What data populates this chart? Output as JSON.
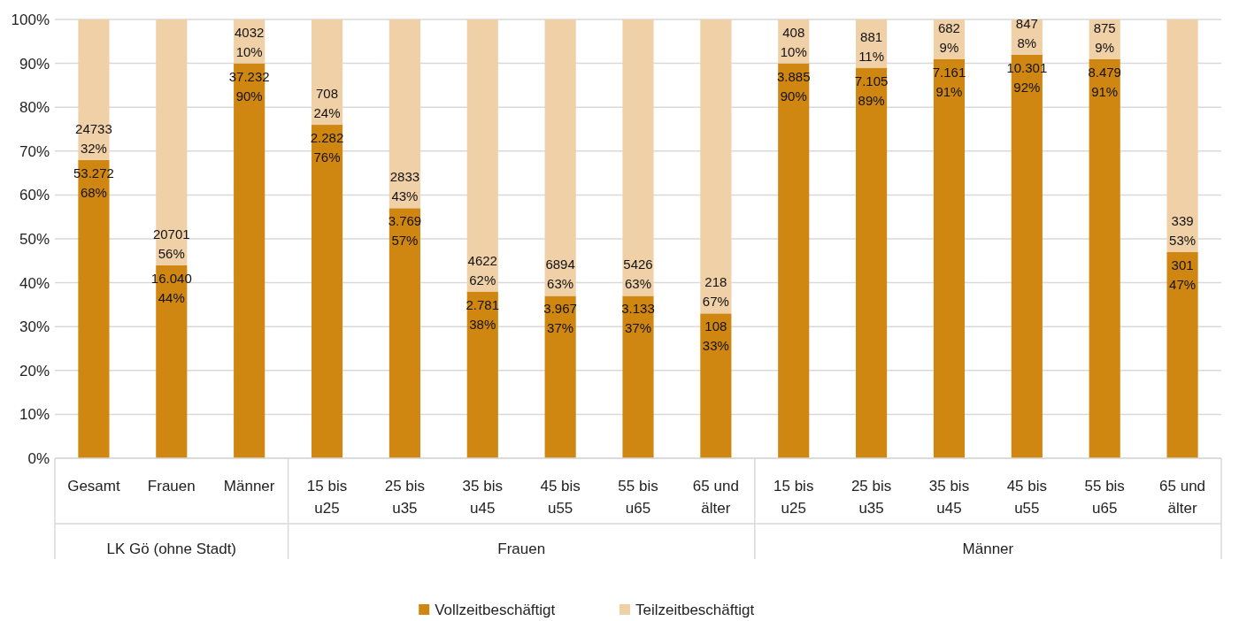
{
  "chart_data": {
    "type": "bar",
    "stacked": true,
    "categories": [
      "Gesamt",
      "Frauen",
      "Männer",
      "15 bis u25",
      "25 bis u35",
      "35 bis u45",
      "45 bis u55",
      "55 bis u65",
      "65 und älter",
      "15 bis u25",
      "25 bis u35",
      "35 bis u45",
      "45 bis u55",
      "55 bis u65",
      "65 und älter"
    ],
    "series": [
      {
        "name": "Vollzeitbeschäftigt",
        "color": "#d08712",
        "values": [
          68,
          44,
          90,
          76,
          57,
          38,
          37,
          37,
          33,
          90,
          89,
          91,
          92,
          91,
          47
        ],
        "value_labels": [
          "53.272\n68%",
          "16.040\n44%",
          "37.232\n90%",
          "2.282\n76%",
          "3.769\n57%",
          "2.781\n38%",
          "3.967\n37%",
          "3.133\n37%",
          "108\n33%",
          "3.885\n90%",
          "7.105\n89%",
          "7.161\n91%",
          "10.301\n92%",
          "8.479\n91%",
          "301\n47%"
        ]
      },
      {
        "name": "Teilzeitbeschäftigt",
        "color": "#f0d0a6",
        "values": [
          32,
          56,
          10,
          24,
          43,
          62,
          63,
          63,
          67,
          10,
          11,
          9,
          8,
          9,
          53
        ],
        "value_labels": [
          "24733\n32%",
          "20701\n56%",
          "4032\n10%",
          "708\n24%",
          "2833\n43%",
          "4622\n62%",
          "6894\n63%",
          "5426\n63%",
          "218\n67%",
          "408\n10%",
          "881\n11%",
          "682\n9%",
          "847\n8%",
          "875\n9%",
          "339\n53%"
        ]
      }
    ],
    "ylim": [
      0,
      100
    ],
    "yticks": [
      {
        "value": 0,
        "label": "0%"
      },
      {
        "value": 10,
        "label": "10%"
      },
      {
        "value": 20,
        "label": "20%"
      },
      {
        "value": 30,
        "label": "30%"
      },
      {
        "value": 40,
        "label": "40%"
      },
      {
        "value": 50,
        "label": "50%"
      },
      {
        "value": 60,
        "label": "60%"
      },
      {
        "value": 70,
        "label": "70%"
      },
      {
        "value": 80,
        "label": "80%"
      },
      {
        "value": 90,
        "label": "90%"
      },
      {
        "value": 100,
        "label": "100%"
      }
    ],
    "grid": "y",
    "legend": "bottom",
    "annotations": [
      "LK Gö (ohne Stadt)",
      "Frauen",
      "Männer"
    ]
  }
}
